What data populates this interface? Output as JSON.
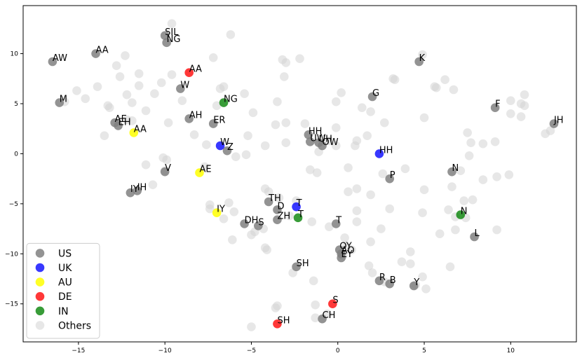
{
  "chart_data": {
    "type": "scatter",
    "title": "",
    "xlabel": "",
    "ylabel": "",
    "xlim": [
      -18.2,
      13.8
    ],
    "ylim": [
      -18.8,
      14.8
    ],
    "x_ticks": [
      -15,
      -10,
      -5,
      0,
      5,
      10
    ],
    "y_ticks": [
      -15,
      -10,
      -5,
      0,
      5,
      10
    ],
    "grid": false,
    "legend_position": "lower-left",
    "series": [
      {
        "name": "US",
        "color": "#808080",
        "opacity": 0.85,
        "points": [
          {
            "x": -16.5,
            "y": 9.2,
            "label": "AW"
          },
          {
            "x": -14.0,
            "y": 10.0,
            "label": "AA"
          },
          {
            "x": -10.0,
            "y": 11.8,
            "label": "SIL"
          },
          {
            "x": -9.9,
            "y": 11.1,
            "label": "NG"
          },
          {
            "x": -16.1,
            "y": 5.1,
            "label": "M"
          },
          {
            "x": -9.1,
            "y": 6.5,
            "label": "W"
          },
          {
            "x": -12.9,
            "y": 3.1,
            "label": "AE"
          },
          {
            "x": -12.7,
            "y": 2.8,
            "label": "EH"
          },
          {
            "x": -8.6,
            "y": 3.5,
            "label": "AH"
          },
          {
            "x": -7.2,
            "y": 3.0,
            "label": "ER"
          },
          {
            "x": -6.4,
            "y": 0.3,
            "label": "Z"
          },
          {
            "x": -10.0,
            "y": -1.8,
            "label": "V"
          },
          {
            "x": -12.0,
            "y": -3.9,
            "label": "IY"
          },
          {
            "x": -11.6,
            "y": -3.7,
            "label": "IH"
          },
          {
            "x": -4.0,
            "y": -4.8,
            "label": "TH"
          },
          {
            "x": -3.5,
            "y": -5.6,
            "label": "D"
          },
          {
            "x": -5.4,
            "y": -7.0,
            "label": "DH"
          },
          {
            "x": -4.6,
            "y": -7.2,
            "label": "S"
          },
          {
            "x": -3.5,
            "y": -6.6,
            "label": "ZH"
          },
          {
            "x": -0.1,
            "y": -7.0,
            "label": "T"
          },
          {
            "x": -1.7,
            "y": 1.9,
            "label": "HH"
          },
          {
            "x": -1.6,
            "y": 1.2,
            "label": "UW"
          },
          {
            "x": -1.1,
            "y": 1.1,
            "label": "UH"
          },
          {
            "x": -0.9,
            "y": 0.8,
            "label": "OW"
          },
          {
            "x": 2.0,
            "y": 5.7,
            "label": "G"
          },
          {
            "x": 4.7,
            "y": 9.2,
            "label": "K"
          },
          {
            "x": 9.1,
            "y": 4.6,
            "label": "F"
          },
          {
            "x": 12.5,
            "y": 3.0,
            "label": "JH"
          },
          {
            "x": 3.0,
            "y": -2.5,
            "label": "P"
          },
          {
            "x": 6.6,
            "y": -1.8,
            "label": "N"
          },
          {
            "x": 7.9,
            "y": -8.3,
            "label": "L"
          },
          {
            "x": 0.1,
            "y": -9.6,
            "label": "OY"
          },
          {
            "x": 0.2,
            "y": -10.0,
            "label": "AO"
          },
          {
            "x": 0.2,
            "y": -10.4,
            "label": "EY"
          },
          {
            "x": -2.4,
            "y": -11.3,
            "label": "SH"
          },
          {
            "x": 2.4,
            "y": -12.7,
            "label": "R"
          },
          {
            "x": 3.0,
            "y": -13.0,
            "label": "B"
          },
          {
            "x": 4.4,
            "y": -13.2,
            "label": "Y"
          },
          {
            "x": -0.9,
            "y": -16.5,
            "label": "CH"
          }
        ]
      },
      {
        "name": "UK",
        "color": "#0000ff",
        "opacity": 0.78,
        "points": [
          {
            "x": -6.8,
            "y": 0.8,
            "label": "W"
          },
          {
            "x": -2.4,
            "y": -5.3,
            "label": "T"
          },
          {
            "x": 2.4,
            "y": 0.0,
            "label": "HH"
          }
        ]
      },
      {
        "name": "AU",
        "color": "#ffff00",
        "opacity": 0.85,
        "points": [
          {
            "x": -11.8,
            "y": 2.1,
            "label": "AA"
          },
          {
            "x": -8.0,
            "y": -1.9,
            "label": "AE"
          },
          {
            "x": -7.0,
            "y": -5.9,
            "label": "IY"
          }
        ]
      },
      {
        "name": "DE",
        "color": "#ff0000",
        "opacity": 0.78,
        "points": [
          {
            "x": -8.6,
            "y": 8.1,
            "label": "AA"
          },
          {
            "x": -0.3,
            "y": -15.0,
            "label": "S"
          },
          {
            "x": -3.5,
            "y": -17.0,
            "label": "SH"
          }
        ]
      },
      {
        "name": "IN",
        "color": "#008000",
        "opacity": 0.78,
        "points": [
          {
            "x": -6.6,
            "y": 5.1,
            "label": "NG"
          },
          {
            "x": -2.3,
            "y": -6.4,
            "label": "T"
          },
          {
            "x": 7.1,
            "y": -6.1,
            "label": "N"
          }
        ]
      },
      {
        "name": "Others",
        "color": "#d3d3d3",
        "opacity": 0.55,
        "points": [
          {
            "x": -9.6,
            "y": 13.0
          },
          {
            "x": -6.2,
            "y": 11.9
          },
          {
            "x": -3.2,
            "y": 9.4
          },
          {
            "x": -3.0,
            "y": 9.1
          },
          {
            "x": -2.2,
            "y": 9.5
          },
          {
            "x": -7.2,
            "y": 9.6
          },
          {
            "x": -12.3,
            "y": 9.8
          },
          {
            "x": -12.8,
            "y": 8.8
          },
          {
            "x": -11.5,
            "y": 8.0
          },
          {
            "x": -9.6,
            "y": 7.9
          },
          {
            "x": -12.6,
            "y": 7.7
          },
          {
            "x": -10.2,
            "y": 7.1
          },
          {
            "x": -11.5,
            "y": 6.8
          },
          {
            "x": -13.9,
            "y": 6.7
          },
          {
            "x": -15.1,
            "y": 6.3
          },
          {
            "x": -12.2,
            "y": 5.9
          },
          {
            "x": -10.6,
            "y": 6.0
          },
          {
            "x": -6.6,
            "y": 6.7
          },
          {
            "x": -6.8,
            "y": 6.5
          },
          {
            "x": -5.4,
            "y": 6.0
          },
          {
            "x": -15.8,
            "y": 5.2
          },
          {
            "x": -14.6,
            "y": 5.5
          },
          {
            "x": -13.3,
            "y": 4.8
          },
          {
            "x": -13.2,
            "y": 4.6
          },
          {
            "x": -11.9,
            "y": 5.1
          },
          {
            "x": -11.1,
            "y": 4.3
          },
          {
            "x": -7.0,
            "y": 4.8
          },
          {
            "x": -9.0,
            "y": 5.3
          },
          {
            "x": -4.9,
            "y": 4.1
          },
          {
            "x": -3.5,
            "y": 5.2
          },
          {
            "x": -3.1,
            "y": 7.7
          },
          {
            "x": -0.1,
            "y": 5.2
          },
          {
            "x": 0.2,
            "y": 6.1
          },
          {
            "x": 1.9,
            "y": 4.2
          },
          {
            "x": 1.4,
            "y": 4.6
          },
          {
            "x": 3.2,
            "y": 7.5
          },
          {
            "x": 3.3,
            "y": 7.4
          },
          {
            "x": 4.9,
            "y": 9.9
          },
          {
            "x": 5.6,
            "y": 6.7
          },
          {
            "x": 5.7,
            "y": 6.6
          },
          {
            "x": 6.2,
            "y": 7.4
          },
          {
            "x": 6.7,
            "y": 6.4
          },
          {
            "x": 10.0,
            "y": 5.3
          },
          {
            "x": 10.8,
            "y": 5.9
          },
          {
            "x": 10.6,
            "y": 5.0
          },
          {
            "x": 10.8,
            "y": 4.8
          },
          {
            "x": 10.0,
            "y": 4.0
          },
          {
            "x": 10.6,
            "y": 3.7
          },
          {
            "x": 12.0,
            "y": 2.0
          },
          {
            "x": 12.3,
            "y": 2.3
          },
          {
            "x": 5.0,
            "y": 3.6
          },
          {
            "x": 2.7,
            "y": 3.1
          },
          {
            "x": 7.5,
            "y": 2.1
          },
          {
            "x": 7.7,
            "y": 1.1
          },
          {
            "x": 8.4,
            "y": 1.0
          },
          {
            "x": 9.1,
            "y": 1.2
          },
          {
            "x": 7.6,
            "y": -0.2
          },
          {
            "x": 1.1,
            "y": 1.3
          },
          {
            "x": 1.7,
            "y": 1.8
          },
          {
            "x": 1.0,
            "y": 0.8
          },
          {
            "x": -0.1,
            "y": 2.6
          },
          {
            "x": -1.9,
            "y": 3.0
          },
          {
            "x": -3.0,
            "y": 3.1
          },
          {
            "x": -3.6,
            "y": 2.9
          },
          {
            "x": -3.0,
            "y": 1.1
          },
          {
            "x": -1.1,
            "y": 0.2
          },
          {
            "x": -0.1,
            "y": 0.8
          },
          {
            "x": -0.5,
            "y": 1.3
          },
          {
            "x": -4.2,
            "y": 0.8
          },
          {
            "x": -5.2,
            "y": 1.8
          },
          {
            "x": -5.3,
            "y": -0.1
          },
          {
            "x": -5.9,
            "y": -0.3
          },
          {
            "x": -7.6,
            "y": 0.9
          },
          {
            "x": -8.3,
            "y": 1.9
          },
          {
            "x": -9.8,
            "y": 3.1
          },
          {
            "x": -11.9,
            "y": 3.3
          },
          {
            "x": -12.2,
            "y": 3.4
          },
          {
            "x": -13.5,
            "y": 1.8
          },
          {
            "x": -10.1,
            "y": -0.4
          },
          {
            "x": -9.9,
            "y": -0.6
          },
          {
            "x": -11.1,
            "y": -1.1
          },
          {
            "x": -10.7,
            "y": -3.1
          },
          {
            "x": -10.0,
            "y": -1.7
          },
          {
            "x": -7.7,
            "y": -1.3
          },
          {
            "x": -7.4,
            "y": -5.1
          },
          {
            "x": -7.4,
            "y": -5.5
          },
          {
            "x": -6.3,
            "y": -4.9
          },
          {
            "x": -6.6,
            "y": -6.5
          },
          {
            "x": -6.0,
            "y": -5.8
          },
          {
            "x": -6.1,
            "y": -8.6
          },
          {
            "x": -5.0,
            "y": -8.1
          },
          {
            "x": -4.3,
            "y": -7.5
          },
          {
            "x": -4.2,
            "y": -3.5
          },
          {
            "x": -4.0,
            "y": -3.8
          },
          {
            "x": -3.4,
            "y": -4.4
          },
          {
            "x": -2.4,
            "y": -4.7
          },
          {
            "x": -2.8,
            "y": -6.2
          },
          {
            "x": -1.5,
            "y": -6.8
          },
          {
            "x": -1.6,
            "y": -1.6
          },
          {
            "x": -1.2,
            "y": -1.9
          },
          {
            "x": 0.6,
            "y": -1.4
          },
          {
            "x": 0.6,
            "y": -3.8
          },
          {
            "x": 1.1,
            "y": -3.5
          },
          {
            "x": 1.1,
            "y": -5.7
          },
          {
            "x": 1.1,
            "y": -6.8
          },
          {
            "x": 1.9,
            "y": -4.1
          },
          {
            "x": 2.6,
            "y": -2.0
          },
          {
            "x": 3.9,
            "y": -1.5
          },
          {
            "x": 5.0,
            "y": -3.6
          },
          {
            "x": 4.9,
            "y": -5.9
          },
          {
            "x": 3.0,
            "y": -5.5
          },
          {
            "x": 2.5,
            "y": -7.5
          },
          {
            "x": 0.4,
            "y": -8.4
          },
          {
            "x": 0.5,
            "y": -9.2
          },
          {
            "x": 0.8,
            "y": -9.6
          },
          {
            "x": 1.9,
            "y": -8.8
          },
          {
            "x": -0.5,
            "y": -7.3
          },
          {
            "x": 1.8,
            "y": -11.2
          },
          {
            "x": 2.0,
            "y": -11.9
          },
          {
            "x": 2.7,
            "y": -12.8
          },
          {
            "x": 3.7,
            "y": -10.8
          },
          {
            "x": 4.2,
            "y": -9.8
          },
          {
            "x": 4.2,
            "y": -11.0
          },
          {
            "x": 4.5,
            "y": -13.1
          },
          {
            "x": 4.9,
            "y": -12.3
          },
          {
            "x": 5.1,
            "y": -13.5
          },
          {
            "x": 6.5,
            "y": -11.3
          },
          {
            "x": 5.9,
            "y": -8.0
          },
          {
            "x": 6.4,
            "y": -5.6
          },
          {
            "x": 6.6,
            "y": -3.3
          },
          {
            "x": 6.8,
            "y": -6.3
          },
          {
            "x": 6.8,
            "y": -7.6
          },
          {
            "x": 7.1,
            "y": -1.7
          },
          {
            "x": 7.3,
            "y": -4.7
          },
          {
            "x": 7.4,
            "y": -6.4
          },
          {
            "x": 7.8,
            "y": -4.6
          },
          {
            "x": 8.4,
            "y": -2.6
          },
          {
            "x": 9.2,
            "y": -2.3
          },
          {
            "x": 9.9,
            "y": -2.1
          },
          {
            "x": 9.2,
            "y": -7.6
          },
          {
            "x": -1.4,
            "y": -12.7
          },
          {
            "x": -2.6,
            "y": -11.9
          },
          {
            "x": -3.5,
            "y": -15.2
          },
          {
            "x": -3.6,
            "y": -15.4
          },
          {
            "x": -1.3,
            "y": -15.1
          },
          {
            "x": -1.3,
            "y": -16.4
          },
          {
            "x": -0.6,
            "y": -16.0
          },
          {
            "x": -5.0,
            "y": -17.3
          },
          {
            "x": -4.2,
            "y": -9.4
          },
          {
            "x": -4.1,
            "y": -9.6
          },
          {
            "x": -4.8,
            "y": -7.8
          },
          {
            "x": 0.3,
            "y": -10.2
          }
        ]
      }
    ]
  }
}
